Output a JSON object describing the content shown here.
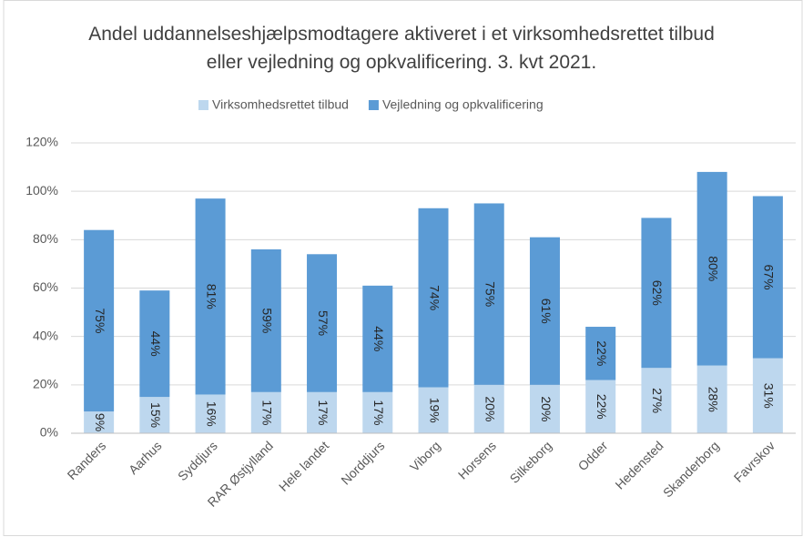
{
  "chart_data": {
    "type": "stacked_bar",
    "title": "Andel uddannelseshjælpsmodtagere aktiveret i et virksomhedsrettet tilbud eller vejledning og opkvalificering. 3. kvt 2021.",
    "categories": [
      "Randers",
      "Aarhus",
      "Syddjurs",
      "RAR Østjylland",
      "Hele landet",
      "Norddjurs",
      "Viborg",
      "Horsens",
      "Silkeborg",
      "Odder",
      "Hedensted",
      "Skanderborg",
      "Favrskov"
    ],
    "series": [
      {
        "name": "Virksomhedsrettet tilbud",
        "color": "#bdd7ee",
        "values": [
          9,
          15,
          16,
          17,
          17,
          17,
          19,
          20,
          20,
          22,
          27,
          28,
          31
        ],
        "value_labels": [
          "9%",
          "15%",
          "16%",
          "17%",
          "17%",
          "17%",
          "19%",
          "20%",
          "20%",
          "22%",
          "27%",
          "28%",
          "31%"
        ]
      },
      {
        "name": "Vejledning og opkvalificering",
        "color": "#5b9bd5",
        "values": [
          75,
          44,
          81,
          59,
          57,
          44,
          74,
          75,
          61,
          22,
          62,
          80,
          67
        ],
        "value_labels": [
          "75%",
          "44%",
          "81%",
          "59%",
          "57%",
          "44%",
          "74%",
          "75%",
          "61%",
          "22%",
          "62%",
          "80%",
          "67%"
        ]
      }
    ],
    "ylim": [
      0,
      120
    ],
    "yticks": [
      {
        "value": 0,
        "label": "0%"
      },
      {
        "value": 20,
        "label": "20%"
      },
      {
        "value": 40,
        "label": "40%"
      },
      {
        "value": 60,
        "label": "60%"
      },
      {
        "value": 80,
        "label": "80%"
      },
      {
        "value": 100,
        "label": "100%"
      },
      {
        "value": 120,
        "label": "120%"
      }
    ],
    "grid": true,
    "legend": "top"
  }
}
